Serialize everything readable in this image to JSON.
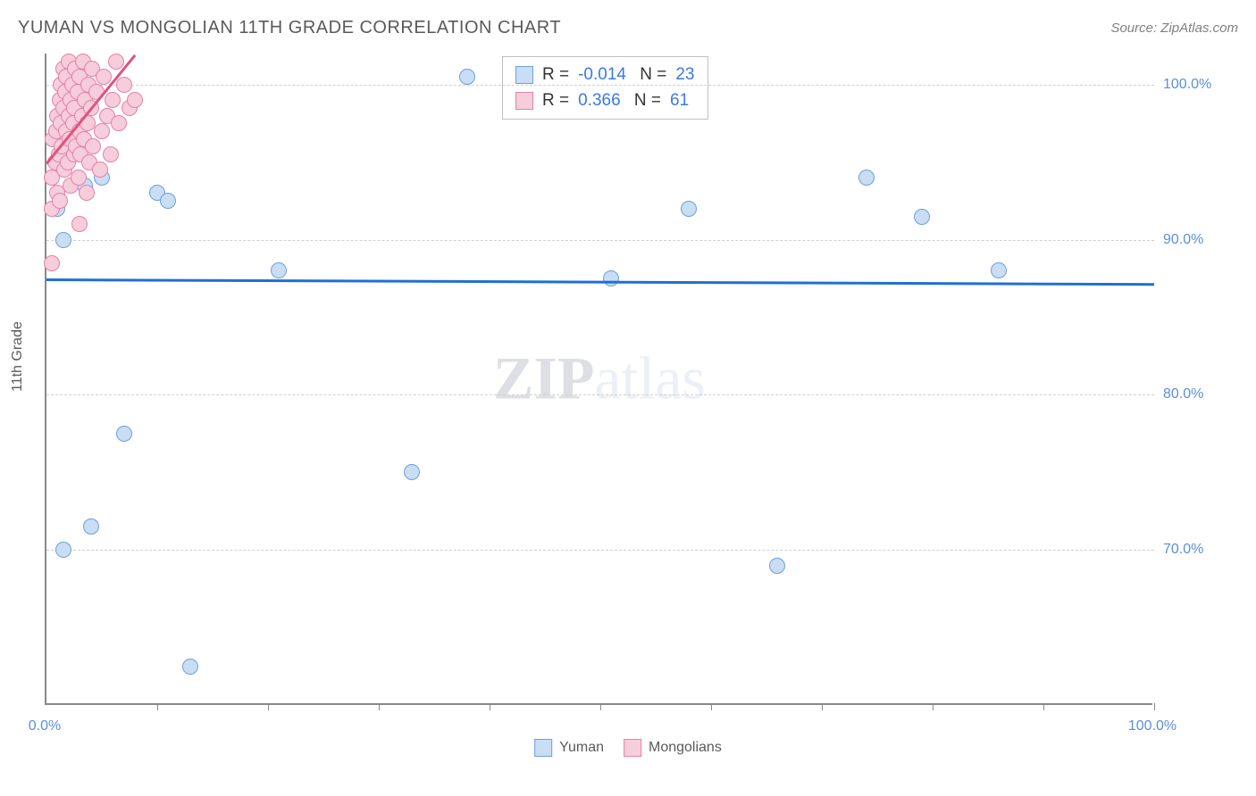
{
  "header": {
    "title": "YUMAN VS MONGOLIAN 11TH GRADE CORRELATION CHART",
    "source": "Source: ZipAtlas.com"
  },
  "ylabel": "11th Grade",
  "watermark": {
    "left": "ZIP",
    "right": "atlas"
  },
  "chart": {
    "type": "scatter",
    "background_color": "#ffffff",
    "grid_color": "#d0d0d0",
    "axis_color": "#888888",
    "xlim": [
      0,
      100
    ],
    "ylim": [
      60,
      102
    ],
    "ytick_labels": [
      "70.0%",
      "80.0%",
      "90.0%",
      "100.0%"
    ],
    "ytick_values": [
      70,
      80,
      90,
      100
    ],
    "xtick_marks": [
      10,
      20,
      30,
      40,
      50,
      60,
      70,
      80,
      90,
      100
    ],
    "xtick_labels": [
      {
        "value": 0,
        "label": "0.0%"
      },
      {
        "value": 100,
        "label": "100.0%"
      }
    ],
    "label_color": "#5b8fd6",
    "label_fontsize": 16,
    "title_fontsize": 20,
    "point_radius": 9,
    "series": [
      {
        "name": "Yuman",
        "marker_fill": "#c9ddf3",
        "marker_stroke": "#6d9fe0",
        "trend_color": "#1f6fd4",
        "R": "-0.014",
        "N": "23",
        "trend": {
          "x0": 0,
          "y0": 87.5,
          "x1": 100,
          "y1": 87.2
        },
        "points": [
          {
            "x": 1.5,
            "y": 90.0
          },
          {
            "x": 1.0,
            "y": 92.0
          },
          {
            "x": 3.0,
            "y": 96.0
          },
          {
            "x": 3.5,
            "y": 93.5
          },
          {
            "x": 4.0,
            "y": 71.5
          },
          {
            "x": 5.0,
            "y": 94.0
          },
          {
            "x": 7.0,
            "y": 77.5
          },
          {
            "x": 10.0,
            "y": 93.0
          },
          {
            "x": 11.0,
            "y": 92.5
          },
          {
            "x": 13.0,
            "y": 62.5
          },
          {
            "x": 1.5,
            "y": 70.0
          },
          {
            "x": 21.0,
            "y": 88.0
          },
          {
            "x": 33.0,
            "y": 75.0
          },
          {
            "x": 38.0,
            "y": 100.5
          },
          {
            "x": 51.0,
            "y": 87.5
          },
          {
            "x": 58.0,
            "y": 92.0
          },
          {
            "x": 66.0,
            "y": 69.0
          },
          {
            "x": 74.0,
            "y": 94.0
          },
          {
            "x": 79.0,
            "y": 91.5
          },
          {
            "x": 86.0,
            "y": 88.0
          },
          {
            "x": 2.5,
            "y": 96.5
          },
          {
            "x": 1.0,
            "y": 95.0
          },
          {
            "x": 2.0,
            "y": 98.0
          }
        ]
      },
      {
        "name": "Mongolians",
        "marker_fill": "#f6cddb",
        "marker_stroke": "#e77fa8",
        "trend_color": "#e0527f",
        "R": "0.366",
        "N": "61",
        "trend": {
          "x0": 0,
          "y0": 95.0,
          "x1": 8,
          "y1": 102.0
        },
        "points": [
          {
            "x": 0.5,
            "y": 92.0
          },
          {
            "x": 0.5,
            "y": 94.0
          },
          {
            "x": 0.8,
            "y": 95.0
          },
          {
            "x": 0.6,
            "y": 96.5
          },
          {
            "x": 0.9,
            "y": 97.0
          },
          {
            "x": 1.0,
            "y": 93.0
          },
          {
            "x": 1.0,
            "y": 98.0
          },
          {
            "x": 1.1,
            "y": 95.5
          },
          {
            "x": 1.2,
            "y": 92.5
          },
          {
            "x": 1.2,
            "y": 99.0
          },
          {
            "x": 1.3,
            "y": 97.5
          },
          {
            "x": 1.3,
            "y": 100.0
          },
          {
            "x": 1.4,
            "y": 96.0
          },
          {
            "x": 1.5,
            "y": 98.5
          },
          {
            "x": 1.5,
            "y": 101.0
          },
          {
            "x": 1.6,
            "y": 94.5
          },
          {
            "x": 1.7,
            "y": 99.5
          },
          {
            "x": 1.8,
            "y": 97.0
          },
          {
            "x": 1.8,
            "y": 100.5
          },
          {
            "x": 1.9,
            "y": 95.0
          },
          {
            "x": 2.0,
            "y": 98.0
          },
          {
            "x": 2.0,
            "y": 101.5
          },
          {
            "x": 2.1,
            "y": 96.5
          },
          {
            "x": 2.2,
            "y": 99.0
          },
          {
            "x": 2.2,
            "y": 93.5
          },
          {
            "x": 2.3,
            "y": 100.0
          },
          {
            "x": 2.4,
            "y": 97.5
          },
          {
            "x": 2.5,
            "y": 95.5
          },
          {
            "x": 2.5,
            "y": 98.5
          },
          {
            "x": 2.6,
            "y": 101.0
          },
          {
            "x": 2.7,
            "y": 96.0
          },
          {
            "x": 2.8,
            "y": 99.5
          },
          {
            "x": 2.9,
            "y": 94.0
          },
          {
            "x": 3.0,
            "y": 97.0
          },
          {
            "x": 3.0,
            "y": 100.5
          },
          {
            "x": 3.1,
            "y": 95.5
          },
          {
            "x": 3.2,
            "y": 98.0
          },
          {
            "x": 3.3,
            "y": 101.5
          },
          {
            "x": 3.4,
            "y": 96.5
          },
          {
            "x": 3.5,
            "y": 99.0
          },
          {
            "x": 3.6,
            "y": 93.0
          },
          {
            "x": 3.7,
            "y": 97.5
          },
          {
            "x": 3.8,
            "y": 100.0
          },
          {
            "x": 3.9,
            "y": 95.0
          },
          {
            "x": 4.0,
            "y": 98.5
          },
          {
            "x": 4.1,
            "y": 101.0
          },
          {
            "x": 4.2,
            "y": 96.0
          },
          {
            "x": 4.5,
            "y": 99.5
          },
          {
            "x": 4.8,
            "y": 94.5
          },
          {
            "x": 5.0,
            "y": 97.0
          },
          {
            "x": 5.2,
            "y": 100.5
          },
          {
            "x": 5.5,
            "y": 98.0
          },
          {
            "x": 5.8,
            "y": 95.5
          },
          {
            "x": 6.0,
            "y": 99.0
          },
          {
            "x": 6.3,
            "y": 101.5
          },
          {
            "x": 6.5,
            "y": 97.5
          },
          {
            "x": 7.0,
            "y": 100.0
          },
          {
            "x": 7.5,
            "y": 98.5
          },
          {
            "x": 8.0,
            "y": 99.0
          },
          {
            "x": 0.5,
            "y": 88.5
          },
          {
            "x": 3.0,
            "y": 91.0
          }
        ]
      }
    ]
  },
  "bottom_legend": {
    "items": [
      "Yuman",
      "Mongolians"
    ]
  }
}
